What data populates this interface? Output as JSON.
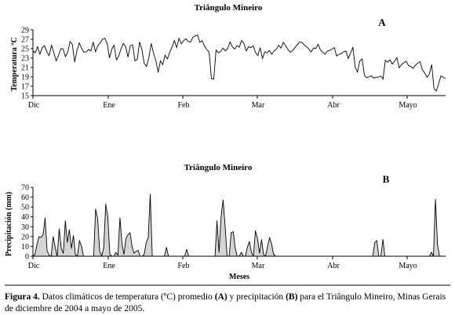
{
  "chart_data": [
    {
      "type": "line",
      "panel": "A",
      "title": "Triângulo Mineiro",
      "xlabel": "",
      "ylabel": "Temperatura ºC",
      "ylim": [
        15,
        29
      ],
      "yticks": [
        "15",
        "17",
        "19",
        "21",
        "23",
        "25",
        "27",
        "29"
      ],
      "month_ticks": [
        "Dic",
        "Ene",
        "Feb",
        "Mar",
        "Abr",
        "Mayo"
      ],
      "x_start": "2004-12-01",
      "x_end": "2005-05-31",
      "series": [
        {
          "values": [
            24.5,
            24.1,
            25.4,
            23.8,
            25.2,
            25.6,
            24.3,
            23.5,
            25.7,
            24.1,
            22.4,
            23.5,
            25.0,
            24.9,
            23.3,
            24.2,
            26.5,
            25.9,
            22.1,
            24.6,
            26.2,
            25.0,
            24.2,
            24.3,
            24.8,
            24.5,
            26.4,
            24.3,
            25.6,
            26.2,
            27.0,
            27.2,
            26.1,
            23.0,
            24.9,
            25.7,
            22.6,
            23.4,
            25.0,
            26.1,
            25.4,
            23.2,
            25.6,
            25.8,
            22.4,
            22.7,
            26.4,
            24.8,
            21.9,
            21.2,
            23.1,
            26.1,
            24.0,
            22.5,
            19.9,
            22.4,
            21.6,
            23.6,
            22.8,
            24.2,
            25.3,
            26.7,
            25.2,
            27.2,
            26.0,
            26.7,
            27.1,
            26.5,
            26.4,
            27.4,
            27.7,
            27.9,
            26.3,
            26.7,
            25.5,
            24.8,
            24.2,
            18.6,
            18.5,
            24.7,
            24.1,
            24.4,
            25.1,
            24.5,
            25.0,
            26.4,
            25.4,
            24.9,
            25.6,
            25.3,
            26.7,
            26.1,
            24.5,
            25.4,
            25.2,
            25.6,
            24.2,
            23.5,
            25.2,
            22.9,
            24.3,
            24.1,
            24.6,
            23.8,
            24.5,
            24.9,
            25.7,
            25.1,
            26.3,
            25.6,
            24.8,
            24.2,
            24.6,
            25.2,
            25.8,
            26.4,
            26.3,
            25.8,
            25.4,
            24.9,
            24.3,
            25.1,
            25.0,
            25.9,
            24.7,
            24.2,
            23.8,
            24.5,
            24.6,
            24.9,
            25.2,
            23.4,
            23.8,
            23.9,
            24.3,
            24.5,
            22.9,
            24.0,
            25.3,
            21.0,
            20.0,
            22.4,
            22.8,
            19.3,
            18.8,
            19.0,
            19.2,
            18.7,
            18.9,
            18.9,
            19.2,
            18.5,
            22.5,
            22.1,
            22.6,
            21.7,
            22.3,
            23.1,
            20.9,
            21.6,
            22.0,
            22.3,
            21.4,
            21.2,
            20.8,
            21.5,
            21.9,
            22.2,
            20.5,
            19.8,
            18.9,
            19.6,
            21.6,
            16.5,
            16.0,
            17.5,
            19.2,
            18.9,
            18.6
          ]
        }
      ]
    },
    {
      "type": "area",
      "panel": "B",
      "title": "Triângulo Mineiro",
      "xlabel": "Meses",
      "ylabel": "Precipitación (mm)",
      "ylim": [
        0,
        70
      ],
      "yticks": [
        "0",
        "10",
        "20",
        "30",
        "40",
        "50",
        "60",
        "70"
      ],
      "month_ticks": [
        "Dic",
        "Ene",
        "Feb",
        "Mar",
        "Abr",
        "Mayo"
      ],
      "x_start": "2004-12-01",
      "x_end": "2005-05-31",
      "series": [
        {
          "values": [
            0,
            2,
            12,
            20,
            19,
            22,
            39,
            6,
            1,
            0,
            20,
            9,
            0,
            28,
            8,
            3,
            36,
            14,
            27,
            8,
            21,
            2,
            0,
            16,
            10,
            0,
            0,
            0,
            0,
            0,
            0,
            48,
            38,
            5,
            0,
            9,
            53,
            40,
            2,
            0,
            0,
            4,
            1,
            39,
            12,
            2,
            18,
            22,
            24,
            10,
            3,
            5,
            6,
            0,
            0,
            2,
            14,
            19,
            63,
            0,
            0,
            0,
            0,
            0,
            0,
            0,
            9,
            0,
            0,
            0,
            0,
            0,
            0,
            0,
            0,
            0,
            7,
            0,
            0,
            0,
            0,
            0,
            0,
            0,
            0,
            0,
            0,
            0,
            0,
            0,
            0,
            36,
            4,
            40,
            57,
            30,
            0,
            0,
            24,
            25,
            8,
            0,
            0,
            4,
            0,
            0,
            9,
            15,
            4,
            0,
            26,
            18,
            3,
            17,
            2,
            0,
            10,
            19,
            12,
            2,
            0,
            0,
            0,
            0,
            0,
            0,
            0,
            0,
            0,
            0,
            0,
            0,
            0,
            0,
            0,
            0,
            0,
            0,
            0,
            0,
            0,
            0,
            0,
            0,
            0,
            0,
            0,
            0,
            0,
            0,
            0,
            0,
            0,
            0,
            0,
            0,
            0,
            0,
            0,
            0,
            0,
            0,
            0,
            0,
            0,
            0,
            0,
            0,
            0,
            14,
            16,
            0,
            0,
            17,
            0,
            0,
            0,
            0,
            0,
            0,
            0,
            0,
            0,
            0,
            0,
            0,
            0,
            0,
            0,
            0,
            0,
            0,
            0,
            0,
            0,
            0,
            0,
            4,
            0,
            58,
            12,
            0,
            0,
            0,
            0
          ]
        }
      ]
    }
  ],
  "caption": {
    "label": "Figura 4.",
    "part1": " Datos climáticos de temperatura (ºC) promedio ",
    "a": "(A)",
    "part2": " y precipitación ",
    "b": "(B)",
    "part3": " para el Triângulo Mineiro, Minas Gerais de diciembre de 2004 a mayo de 2005."
  }
}
